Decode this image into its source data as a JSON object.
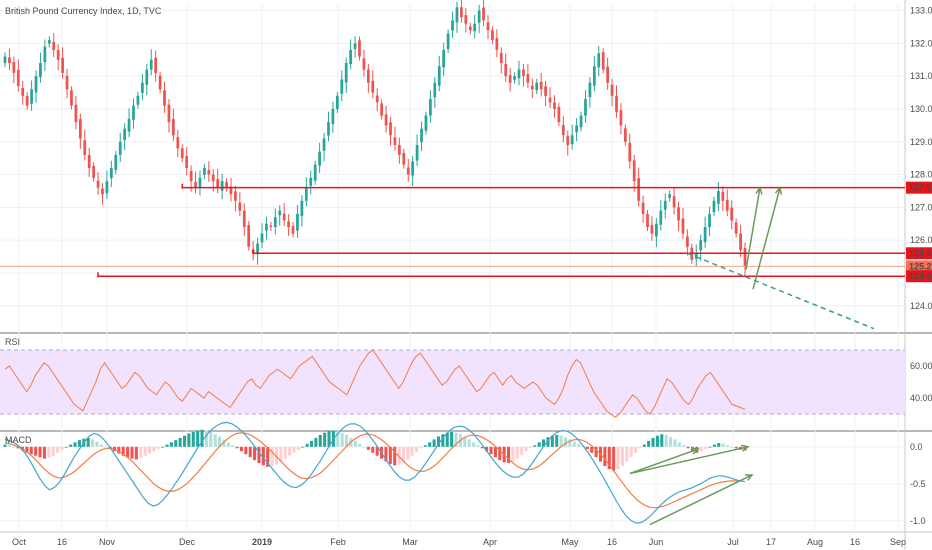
{
  "header": {
    "title": "British Pound Currency Index, 1D, TVC"
  },
  "colors": {
    "up": "#26a69a",
    "down": "#ef5350",
    "level": "#e8141c",
    "rsi_line": "#f57c43",
    "rsi_band": "#f1e3fd",
    "macd_line": "#41a6cf",
    "signal_line": "#f57c43",
    "trend_dash": "#3d9b99",
    "arrow": "#6a9a5c"
  },
  "chart_data": [
    {
      "type": "candlestick",
      "name": "price",
      "x_ticks": [
        "Oct",
        "16",
        "Nov",
        "Dec",
        "2019",
        "Feb",
        "Mar",
        "Apr",
        "May",
        "16",
        "Jun",
        "Jul",
        "17",
        "Aug",
        "16",
        "Sep"
      ],
      "y_ticks": [
        "133.0",
        "132.0",
        "131.0",
        "130.0",
        "129.0",
        "128.0",
        "127.0",
        "126.0",
        "125.0",
        "124.0"
      ],
      "ylim": [
        123.2,
        133.2
      ],
      "price_labels": [
        "127.6",
        "125.6",
        "125.2",
        "124.9"
      ],
      "levels": [
        127.6,
        125.6,
        124.9
      ],
      "current_price": 125.2,
      "closes": [
        131.6,
        131.4,
        131.1,
        130.7,
        130.4,
        130.1,
        130.6,
        131.0,
        131.4,
        131.9,
        132.1,
        131.8,
        131.5,
        131.1,
        130.6,
        130.1,
        129.6,
        129.1,
        128.6,
        128.2,
        127.9,
        127.6,
        127.4,
        127.8,
        128.2,
        128.6,
        129.0,
        129.4,
        129.7,
        130.1,
        130.4,
        130.8,
        131.2,
        131.5,
        131.1,
        130.6,
        130.1,
        129.6,
        129.2,
        128.8,
        128.5,
        128.2,
        127.8,
        127.6,
        127.9,
        128.2,
        128.0,
        127.8,
        127.6,
        127.8,
        127.6,
        127.4,
        127.2,
        126.9,
        126.4,
        125.8,
        125.6,
        125.9,
        126.2,
        126.5,
        126.4,
        126.7,
        126.9,
        126.6,
        126.4,
        126.2,
        126.8,
        127.2,
        127.6,
        127.9,
        128.3,
        128.7,
        129.1,
        129.6,
        130.0,
        130.4,
        130.9,
        131.4,
        131.8,
        132.0,
        131.6,
        131.2,
        130.8,
        130.5,
        130.2,
        129.8,
        129.5,
        129.2,
        128.9,
        128.6,
        128.3,
        128.0,
        128.4,
        128.9,
        129.4,
        129.8,
        130.3,
        130.8,
        131.3,
        131.8,
        132.3,
        132.7,
        133.1,
        132.8,
        132.6,
        132.4,
        132.6,
        133.0,
        132.7,
        132.4,
        132.1,
        131.8,
        131.4,
        131.0,
        130.8,
        131.0,
        131.2,
        131.0,
        130.8,
        130.6,
        130.8,
        130.6,
        130.4,
        130.2,
        130.0,
        129.6,
        129.2,
        128.9,
        129.2,
        129.5,
        129.8,
        130.3,
        130.8,
        131.3,
        131.7,
        131.2,
        130.8,
        130.4,
        129.9,
        129.5,
        129.0,
        128.4,
        127.8,
        127.2,
        126.8,
        126.4,
        126.2,
        126.5,
        126.9,
        127.2,
        127.4,
        127.0,
        126.6,
        126.2,
        125.8,
        125.4,
        125.6,
        126.0,
        126.4,
        126.8,
        127.2,
        127.5,
        127.2,
        126.9,
        126.6,
        126.2,
        125.7,
        125.2
      ]
    },
    {
      "type": "line",
      "name": "RSI",
      "title": "RSI",
      "y_ticks": [
        "60.00",
        "40.00"
      ],
      "ylim": [
        20,
        80
      ],
      "band": [
        30,
        70
      ],
      "values": [
        58,
        60,
        56,
        52,
        48,
        44,
        48,
        54,
        58,
        62,
        60,
        56,
        52,
        48,
        44,
        40,
        36,
        34,
        32,
        38,
        44,
        50,
        58,
        62,
        58,
        54,
        50,
        46,
        48,
        52,
        56,
        54,
        50,
        46,
        44,
        42,
        46,
        50,
        48,
        44,
        40,
        38,
        42,
        46,
        44,
        42,
        40,
        44,
        42,
        40,
        38,
        36,
        34,
        38,
        42,
        46,
        50,
        52,
        48,
        46,
        50,
        54,
        56,
        58,
        56,
        54,
        52,
        56,
        60,
        62,
        64,
        66,
        62,
        58,
        54,
        50,
        48,
        46,
        44,
        42,
        48,
        54,
        60,
        64,
        68,
        70,
        66,
        62,
        58,
        54,
        50,
        46,
        50,
        56,
        62,
        66,
        68,
        64,
        60,
        56,
        52,
        48,
        50,
        54,
        58,
        60,
        56,
        52,
        48,
        44,
        46,
        50,
        54,
        56,
        52,
        48,
        52,
        54,
        50,
        48,
        46,
        48,
        50,
        48,
        44,
        40,
        38,
        36,
        40,
        46,
        54,
        60,
        64,
        62,
        56,
        50,
        44,
        40,
        36,
        32,
        30,
        28,
        30,
        34,
        38,
        42,
        40,
        36,
        32,
        30,
        34,
        40,
        46,
        52,
        50,
        46,
        42,
        38,
        36,
        40,
        46,
        50,
        54,
        56,
        52,
        48,
        44,
        40,
        36,
        35,
        34,
        33
      ]
    },
    {
      "type": "bar",
      "name": "MACD",
      "title": "MACD",
      "y_ticks": [
        "0.0",
        "-0.5",
        "-1.0"
      ],
      "ylim": [
        -1.15,
        0.2
      ],
      "histogram": [
        0.03,
        0.02,
        0.0,
        -0.02,
        -0.05,
        -0.08,
        -0.1,
        -0.12,
        -0.14,
        -0.16,
        -0.15,
        -0.12,
        -0.08,
        -0.04,
        0.0,
        0.03,
        0.06,
        0.09,
        0.11,
        0.12,
        0.1,
        0.07,
        0.03,
        0.0,
        -0.03,
        -0.06,
        -0.09,
        -0.12,
        -0.14,
        -0.16,
        -0.17,
        -0.15,
        -0.12,
        -0.09,
        -0.06,
        -0.03,
        0.0,
        0.03,
        0.06,
        0.09,
        0.12,
        0.15,
        0.18,
        0.2,
        0.22,
        0.23,
        0.22,
        0.2,
        0.17,
        0.14,
        0.1,
        0.06,
        0.02,
        -0.02,
        -0.06,
        -0.1,
        -0.14,
        -0.18,
        -0.22,
        -0.25,
        -0.27,
        -0.26,
        -0.24,
        -0.2,
        -0.16,
        -0.12,
        -0.08,
        -0.04,
        0.0,
        0.04,
        0.08,
        0.12,
        0.16,
        0.19,
        0.21,
        0.22,
        0.21,
        0.19,
        0.16,
        0.12,
        0.08,
        0.04,
        0.0,
        -0.04,
        -0.08,
        -0.12,
        -0.16,
        -0.2,
        -0.23,
        -0.25,
        -0.24,
        -0.21,
        -0.17,
        -0.12,
        -0.07,
        -0.02,
        0.02,
        0.06,
        0.1,
        0.14,
        0.17,
        0.19,
        0.2,
        0.19,
        0.17,
        0.14,
        0.1,
        0.06,
        0.02,
        -0.02,
        -0.06,
        -0.1,
        -0.14,
        -0.18,
        -0.21,
        -0.22,
        -0.2,
        -0.16,
        -0.11,
        -0.06,
        -0.02,
        0.02,
        0.06,
        0.1,
        0.13,
        0.15,
        0.16,
        0.15,
        0.13,
        0.1,
        0.07,
        0.04,
        0.01,
        -0.03,
        -0.08,
        -0.14,
        -0.2,
        -0.26,
        -0.3,
        -0.32,
        -0.3,
        -0.26,
        -0.2,
        -0.14,
        -0.08,
        -0.02,
        0.03,
        0.08,
        0.12,
        0.15,
        0.17,
        0.16,
        0.13,
        0.1,
        0.06,
        0.02,
        -0.02,
        -0.06,
        -0.08,
        -0.06,
        -0.03,
        0.0,
        0.03,
        0.05,
        0.04,
        0.02,
        0.0,
        -0.02,
        -0.04,
        -0.05
      ],
      "macd_line": [
        0.1,
        0.08,
        0.05,
        0.0,
        -0.08,
        -0.18,
        -0.3,
        -0.42,
        -0.52,
        -0.58,
        -0.55,
        -0.48,
        -0.38,
        -0.26,
        -0.14,
        -0.04,
        0.06,
        0.14,
        0.18,
        0.16,
        0.1,
        0.02,
        -0.08,
        -0.18,
        -0.28,
        -0.38,
        -0.48,
        -0.58,
        -0.68,
        -0.76,
        -0.8,
        -0.78,
        -0.72,
        -0.64,
        -0.55,
        -0.45,
        -0.35,
        -0.24,
        -0.13,
        -0.02,
        0.08,
        0.17,
        0.24,
        0.29,
        0.32,
        0.33,
        0.31,
        0.27,
        0.21,
        0.14,
        0.06,
        -0.03,
        -0.12,
        -0.2,
        -0.28,
        -0.36,
        -0.44,
        -0.5,
        -0.54,
        -0.55,
        -0.52,
        -0.46,
        -0.38,
        -0.28,
        -0.18,
        -0.07,
        0.04,
        0.14,
        0.22,
        0.28,
        0.31,
        0.31,
        0.28,
        0.22,
        0.14,
        0.05,
        -0.05,
        -0.15,
        -0.25,
        -0.34,
        -0.41,
        -0.45,
        -0.45,
        -0.41,
        -0.34,
        -0.25,
        -0.15,
        -0.05,
        0.05,
        0.14,
        0.21,
        0.26,
        0.28,
        0.27,
        0.23,
        0.17,
        0.09,
        0.0,
        -0.09,
        -0.18,
        -0.26,
        -0.33,
        -0.38,
        -0.41,
        -0.41,
        -0.37,
        -0.3,
        -0.21,
        -0.11,
        -0.01,
        0.08,
        0.15,
        0.2,
        0.22,
        0.21,
        0.17,
        0.11,
        0.03,
        -0.06,
        -0.16,
        -0.27,
        -0.38,
        -0.5,
        -0.62,
        -0.74,
        -0.85,
        -0.94,
        -1.0,
        -1.03,
        -1.02,
        -0.98,
        -0.92,
        -0.85,
        -0.78,
        -0.72,
        -0.67,
        -0.63,
        -0.6,
        -0.58,
        -0.56,
        -0.53,
        -0.5,
        -0.46,
        -0.42,
        -0.4,
        -0.39,
        -0.4,
        -0.42,
        -0.44,
        -0.46,
        -0.47
      ],
      "signal_line": [
        0.05,
        0.04,
        0.02,
        -0.01,
        -0.05,
        -0.1,
        -0.16,
        -0.23,
        -0.3,
        -0.36,
        -0.4,
        -0.42,
        -0.41,
        -0.38,
        -0.34,
        -0.28,
        -0.22,
        -0.16,
        -0.1,
        -0.06,
        -0.03,
        -0.02,
        -0.03,
        -0.06,
        -0.1,
        -0.15,
        -0.21,
        -0.28,
        -0.35,
        -0.42,
        -0.49,
        -0.54,
        -0.58,
        -0.6,
        -0.6,
        -0.58,
        -0.54,
        -0.49,
        -0.42,
        -0.35,
        -0.27,
        -0.19,
        -0.11,
        -0.03,
        0.04,
        0.1,
        0.15,
        0.18,
        0.19,
        0.18,
        0.15,
        0.11,
        0.06,
        0.0,
        -0.06,
        -0.13,
        -0.2,
        -0.27,
        -0.33,
        -0.38,
        -0.42,
        -0.43,
        -0.42,
        -0.39,
        -0.35,
        -0.29,
        -0.22,
        -0.15,
        -0.08,
        -0.01,
        0.06,
        0.11,
        0.15,
        0.17,
        0.17,
        0.15,
        0.11,
        0.06,
        0.0,
        -0.07,
        -0.14,
        -0.21,
        -0.27,
        -0.31,
        -0.33,
        -0.33,
        -0.3,
        -0.26,
        -0.2,
        -0.13,
        -0.06,
        0.01,
        0.07,
        0.12,
        0.15,
        0.16,
        0.15,
        0.12,
        0.08,
        0.03,
        -0.03,
        -0.1,
        -0.16,
        -0.22,
        -0.27,
        -0.3,
        -0.31,
        -0.3,
        -0.27,
        -0.22,
        -0.16,
        -0.1,
        -0.04,
        0.02,
        0.06,
        0.09,
        0.1,
        0.09,
        0.06,
        0.01,
        -0.05,
        -0.12,
        -0.2,
        -0.29,
        -0.38,
        -0.47,
        -0.56,
        -0.64,
        -0.71,
        -0.76,
        -0.8,
        -0.82,
        -0.82,
        -0.81,
        -0.79,
        -0.76,
        -0.73,
        -0.7,
        -0.67,
        -0.64,
        -0.61,
        -0.58,
        -0.55,
        -0.52,
        -0.5,
        -0.48,
        -0.47,
        -0.46,
        -0.46,
        -0.46
      ]
    }
  ]
}
